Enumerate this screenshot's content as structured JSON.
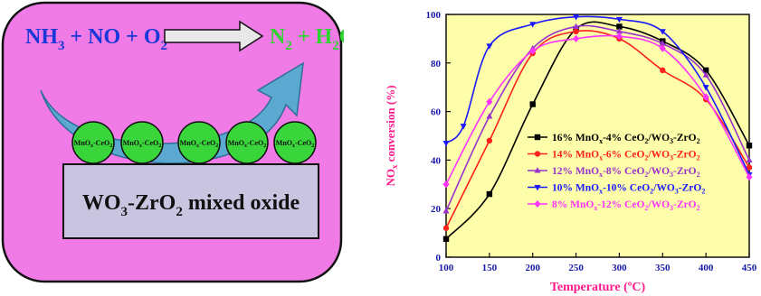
{
  "scheme": {
    "reactants": {
      "main": "NH",
      "s1": "3",
      "mid": " + NO + O",
      "s2": "2"
    },
    "products": {
      "main": "N",
      "s1": "2",
      "mid": " + H",
      "s2": "2",
      "tail": "O"
    },
    "particle_label": {
      "a": "MnO",
      "b": "x",
      "c": "-CeO",
      "d": "2"
    },
    "support": {
      "a": "WO",
      "b": "3",
      "c": "-ZrO",
      "d": "2",
      "e": " mixed oxide"
    },
    "colors": {
      "panel": "#f07ae6",
      "reactants": "#1a38d8",
      "products": "#2fd32f",
      "arrow": "#5ba8d0",
      "support": "#c9c5e0",
      "particle": "#3ad53a"
    }
  },
  "chart_data": {
    "type": "line",
    "xlabel": "Temperature (ºC)",
    "ylabel": "NOx conversion (%)",
    "ylabel_parts": {
      "a": "NO",
      "b": "x",
      "c": " conversion (%)"
    },
    "xlim": [
      100,
      450
    ],
    "ylim": [
      0,
      100
    ],
    "xticks": [
      100,
      150,
      200,
      250,
      300,
      350,
      400,
      450
    ],
    "yticks": [
      0,
      20,
      40,
      60,
      80,
      100
    ],
    "plot_background": "#fdfdaa",
    "legend_position": "right",
    "series": [
      {
        "name": "16% MnOx-4% CeO2/WO3-ZrO2",
        "label_html": {
          "a": "16% MnO",
          "b": "x",
          "c": "-4% CeO",
          "d": "2",
          "e": "/WO",
          "f": "3",
          "g": "-ZrO",
          "h": "2"
        },
        "color": "#000000",
        "marker": "square",
        "x": [
          100,
          150,
          200,
          250,
          300,
          350,
          400,
          450
        ],
        "y": [
          7.5,
          26,
          63,
          94,
          95,
          89,
          77,
          46
        ]
      },
      {
        "name": "14% MnOx-6% CeO2/WO3-ZrO2",
        "label_html": {
          "a": "14% MnO",
          "b": "x",
          "c": "-6% CeO",
          "d": "2",
          "e": "/WO",
          "f": "3",
          "g": "-ZrO",
          "h": "2"
        },
        "color": "#ff2020",
        "marker": "circle",
        "x": [
          100,
          150,
          200,
          250,
          300,
          350,
          400,
          450
        ],
        "y": [
          12,
          48,
          84,
          93,
          90,
          77,
          65,
          37
        ]
      },
      {
        "name": "12% MnOx-8% CeO2/WO3-ZrO2",
        "label_html": {
          "a": "12% MnO",
          "b": "x",
          "c": "-8% CeO",
          "d": "2",
          "e": "/WO",
          "f": "3",
          "g": "-ZrO",
          "h": "2"
        },
        "color": "#9933cc",
        "marker": "triangle-up",
        "x": [
          100,
          150,
          200,
          250,
          300,
          350,
          400,
          450
        ],
        "y": [
          19,
          58,
          86,
          95,
          93,
          88,
          75,
          40
        ]
      },
      {
        "name": "10% MnOx-10% CeO2/WO3-ZrO2",
        "label_html": {
          "a": "10% MnO",
          "b": "x",
          "c": "-10% CeO",
          "d": "2",
          "e": "/WO",
          "f": "3",
          "g": "-ZrO",
          "h": "2"
        },
        "color": "#1a1aff",
        "marker": "triangle-down",
        "x": [
          100,
          120,
          150,
          200,
          250,
          300,
          350,
          400,
          450
        ],
        "y": [
          47,
          54,
          87,
          96,
          99,
          98,
          93,
          70,
          34
        ]
      },
      {
        "name": "8% MnOx-12% CeO2/WO3-ZrO2",
        "label_html": {
          "a": "8% MnO",
          "b": "x",
          "c": "-12% CeO",
          "d": "2",
          "e": "/WO",
          "f": "3",
          "g": "-ZrO",
          "h": "2"
        },
        "color": "#ff33ff",
        "marker": "diamond",
        "x": [
          100,
          150,
          200,
          250,
          300,
          350,
          400,
          450
        ],
        "y": [
          30,
          64,
          85,
          90,
          91,
          86,
          66,
          33
        ]
      }
    ]
  }
}
